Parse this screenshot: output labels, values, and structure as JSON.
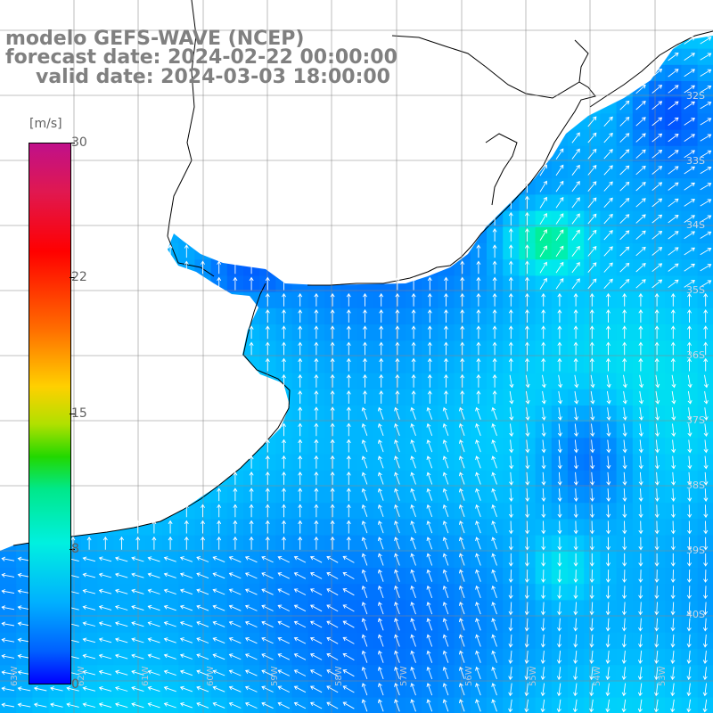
{
  "title": {
    "line1": "modelo GEFS-WAVE (NCEP)",
    "line2": "forecast date: 2024-02-22 00:00:00",
    "line3": "valid date: 2024-03-03 18:00:00"
  },
  "colorbar": {
    "unit": "[m/s]",
    "ticks": [
      {
        "label": "30",
        "value": 30
      },
      {
        "label": "22",
        "value": 22
      },
      {
        "label": "15",
        "value": 15
      },
      {
        "label": "8",
        "value": 8
      },
      {
        "label": "0",
        "value": 0
      }
    ],
    "min": 0,
    "max": 30,
    "colors": [
      "#c0108a",
      "#ff0000",
      "#ff6a00",
      "#ffd000",
      "#22d800",
      "#00f0e0",
      "#00b0ff",
      "#0000ff"
    ]
  },
  "map": {
    "variable": "wind speed",
    "arrow_color": "#ffffff",
    "land_color": "#ffffff",
    "coastline_color": "#000000",
    "grid_color": "#888888",
    "lat_labels": [
      "32S",
      "33S",
      "34S",
      "35S",
      "36S",
      "37S",
      "38S",
      "39S",
      "40S"
    ],
    "lon_labels": [
      "63W",
      "62W",
      "61W",
      "60W",
      "59W",
      "58W",
      "57W",
      "56W",
      "55W",
      "54W",
      "53W"
    ]
  }
}
